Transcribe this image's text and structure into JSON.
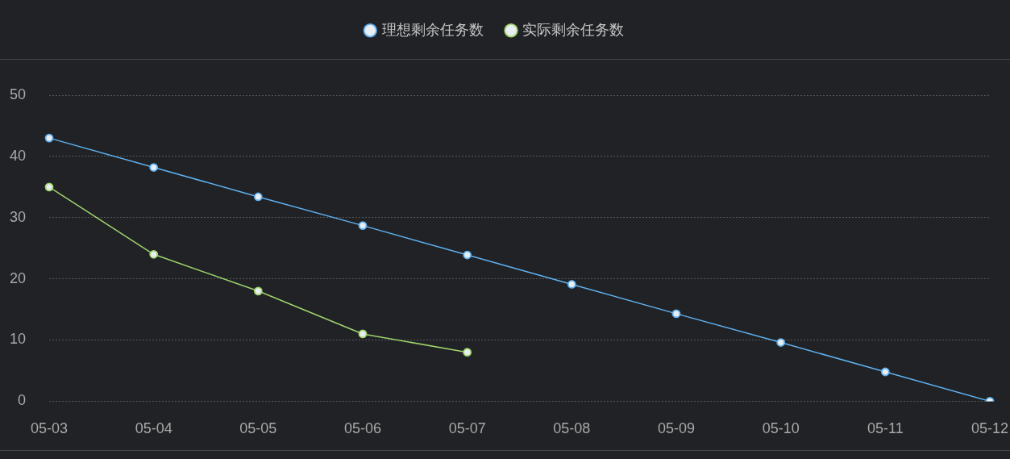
{
  "chart_data": {
    "type": "line",
    "categories": [
      "05-03",
      "05-04",
      "05-05",
      "05-06",
      "05-07",
      "05-08",
      "05-09",
      "05-10",
      "05-11",
      "05-12"
    ],
    "series": [
      {
        "name": "理想剩余任务数",
        "color": "#5fb0f0",
        "values": [
          43,
          38.2,
          33.4,
          28.7,
          23.9,
          19.1,
          14.3,
          9.6,
          4.8,
          0
        ]
      },
      {
        "name": "实际剩余任务数",
        "color": "#9fd46b",
        "values": [
          35,
          24,
          18,
          11,
          8,
          null,
          null,
          null,
          null,
          null
        ]
      }
    ],
    "ylim": [
      0,
      50
    ],
    "yticks": [
      0,
      10,
      20,
      30,
      40,
      50
    ],
    "grid": "y",
    "legend": "top",
    "marker": "circle",
    "line_style": "solid"
  }
}
